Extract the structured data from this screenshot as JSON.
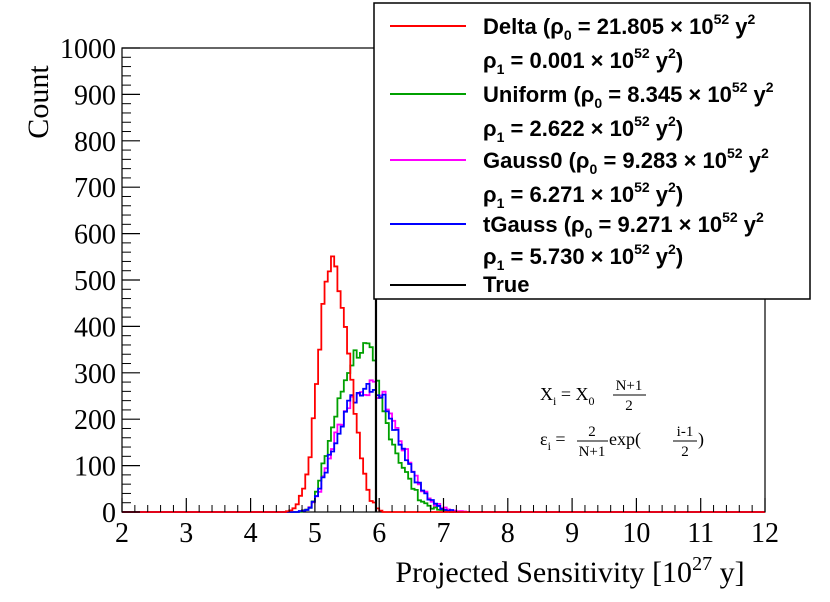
{
  "chart_data": {
    "type": "histogram",
    "xlabel": "Projected Sensitivity [10^27 y]",
    "xlabel_main": "Projected Sensitivity [10",
    "xlabel_exp": "27",
    "xlabel_tail": " y]",
    "ylabel": "Count",
    "xlim": [
      2,
      12
    ],
    "ylim": [
      0,
      1000
    ],
    "x_ticks": [
      "2",
      "3",
      "4",
      "5",
      "6",
      "7",
      "8",
      "9",
      "10",
      "11",
      "12"
    ],
    "y_ticks": [
      "0",
      "100",
      "200",
      "300",
      "400",
      "500",
      "600",
      "700",
      "800",
      "900",
      "1000"
    ],
    "true_value": 5.95,
    "legend": {
      "position": "top-right",
      "entries": [
        {
          "name": "Delta",
          "color": "#ff0000",
          "line1": "Delta (ρ0 = 21.805 × 10^52 y^2",
          "line2": "ρ1 = 0.001 × 10^52 y^2)"
        },
        {
          "name": "Uniform",
          "color": "#00a000",
          "line1": "Uniform (ρ0 = 8.345 × 10^52 y^2",
          "line2": "ρ1 = 2.622 × 10^52 y^2)"
        },
        {
          "name": "Gauss0",
          "color": "#ff00ff",
          "line1": "Gauss0 (ρ0 = 9.283 × 10^52 y^2",
          "line2": "ρ1 = 6.271 × 10^52 y^2)"
        },
        {
          "name": "tGauss",
          "color": "#0000ff",
          "line1": "tGauss (ρ0 = 9.271 × 10^52 y^2",
          "line2": "ρ1 = 5.730 × 10^52 y^2)"
        },
        {
          "name": "True",
          "color": "#000000",
          "line1": "True",
          "line2": ""
        }
      ]
    },
    "annotations": [
      "X_i = X_0 (N+1)/2",
      "ε_i = 2/(N+1) exp((i-1)/2)"
    ],
    "series": [
      {
        "name": "Delta",
        "color": "#ff0000",
        "shape": [
          [
            4.55,
            0
          ],
          [
            4.65,
            5
          ],
          [
            4.75,
            20
          ],
          [
            4.85,
            60
          ],
          [
            4.95,
            150
          ],
          [
            5.05,
            310
          ],
          [
            5.15,
            470
          ],
          [
            5.22,
            520
          ],
          [
            5.28,
            528
          ],
          [
            5.35,
            500
          ],
          [
            5.45,
            420
          ],
          [
            5.55,
            300
          ],
          [
            5.65,
            180
          ],
          [
            5.75,
            90
          ],
          [
            5.85,
            35
          ],
          [
            5.95,
            10
          ],
          [
            6.05,
            0
          ]
        ]
      },
      {
        "name": "Uniform",
        "color": "#00a000",
        "shape": [
          [
            4.75,
            0
          ],
          [
            4.85,
            5
          ],
          [
            4.95,
            15
          ],
          [
            5.05,
            50
          ],
          [
            5.15,
            110
          ],
          [
            5.25,
            170
          ],
          [
            5.35,
            220
          ],
          [
            5.45,
            275
          ],
          [
            5.55,
            320
          ],
          [
            5.65,
            345
          ],
          [
            5.75,
            355
          ],
          [
            5.82,
            350
          ],
          [
            5.9,
            330
          ],
          [
            6.0,
            250
          ],
          [
            6.1,
            200
          ],
          [
            6.2,
            160
          ],
          [
            6.3,
            120
          ],
          [
            6.4,
            90
          ],
          [
            6.5,
            60
          ],
          [
            6.6,
            35
          ],
          [
            6.7,
            20
          ],
          [
            6.85,
            8
          ],
          [
            7.0,
            2
          ],
          [
            7.2,
            0
          ]
        ]
      },
      {
        "name": "Gauss0",
        "color": "#ff00ff",
        "shape": [
          [
            4.75,
            0
          ],
          [
            4.85,
            5
          ],
          [
            4.95,
            15
          ],
          [
            5.05,
            40
          ],
          [
            5.15,
            80
          ],
          [
            5.25,
            130
          ],
          [
            5.35,
            175
          ],
          [
            5.45,
            210
          ],
          [
            5.55,
            240
          ],
          [
            5.65,
            250
          ],
          [
            5.75,
            262
          ],
          [
            5.85,
            270
          ],
          [
            5.95,
            262
          ],
          [
            6.05,
            250
          ],
          [
            6.15,
            225
          ],
          [
            6.25,
            185
          ],
          [
            6.35,
            150
          ],
          [
            6.45,
            115
          ],
          [
            6.55,
            85
          ],
          [
            6.65,
            55
          ],
          [
            6.75,
            35
          ],
          [
            6.85,
            20
          ],
          [
            7.0,
            8
          ],
          [
            7.2,
            2
          ],
          [
            7.4,
            0
          ]
        ]
      },
      {
        "name": "tGauss",
        "color": "#0000ff",
        "shape": [
          [
            4.75,
            0
          ],
          [
            4.85,
            5
          ],
          [
            4.95,
            14
          ],
          [
            5.05,
            38
          ],
          [
            5.15,
            78
          ],
          [
            5.25,
            128
          ],
          [
            5.35,
            172
          ],
          [
            5.45,
            208
          ],
          [
            5.55,
            236
          ],
          [
            5.65,
            252
          ],
          [
            5.75,
            272
          ],
          [
            5.85,
            278
          ],
          [
            5.95,
            265
          ],
          [
            6.05,
            250
          ],
          [
            6.15,
            222
          ],
          [
            6.25,
            182
          ],
          [
            6.35,
            148
          ],
          [
            6.45,
            112
          ],
          [
            6.55,
            80
          ],
          [
            6.65,
            52
          ],
          [
            6.75,
            32
          ],
          [
            6.85,
            18
          ],
          [
            7.0,
            6
          ],
          [
            7.2,
            1
          ],
          [
            7.4,
            0
          ]
        ]
      }
    ]
  },
  "legend_text": {
    "delta_label": "Delta (ρ",
    "delta_rho0": " = 21.805 × 10",
    "delta_rho1": " = 0.001 × 10",
    "uniform_label": "Uniform (ρ",
    "uniform_rho0": " = 8.345 × 10",
    "uniform_rho1": " = 2.622 × 10",
    "gauss0_label": "Gauss0 (ρ",
    "gauss0_rho0": " = 9.283 × 10",
    "gauss0_rho1": " = 6.271 × 10",
    "tgauss_label": "tGauss (ρ",
    "tgauss_rho0": " = 9.271 × 10",
    "tgauss_rho1": " = 5.730 × 10",
    "true_label": "True",
    "rho": "ρ",
    "sub0": "0",
    "sub1": "1",
    "exp52": "52",
    "y": " y",
    "sq": "2",
    "close": ")"
  },
  "annotation_text": {
    "x_lhs": "X",
    "x_sub": "i",
    "x_eq": " = X",
    "x_sub0": "0",
    "x_num": "N+1",
    "x_den": "2",
    "e_lhs": "ε",
    "e_sub": "i",
    "e_eq": " = ",
    "e_num": "2",
    "e_den": "N+1",
    "e_exp": " exp(",
    "e_num2": "i-1",
    "e_den2": "2",
    "e_close": ")"
  }
}
